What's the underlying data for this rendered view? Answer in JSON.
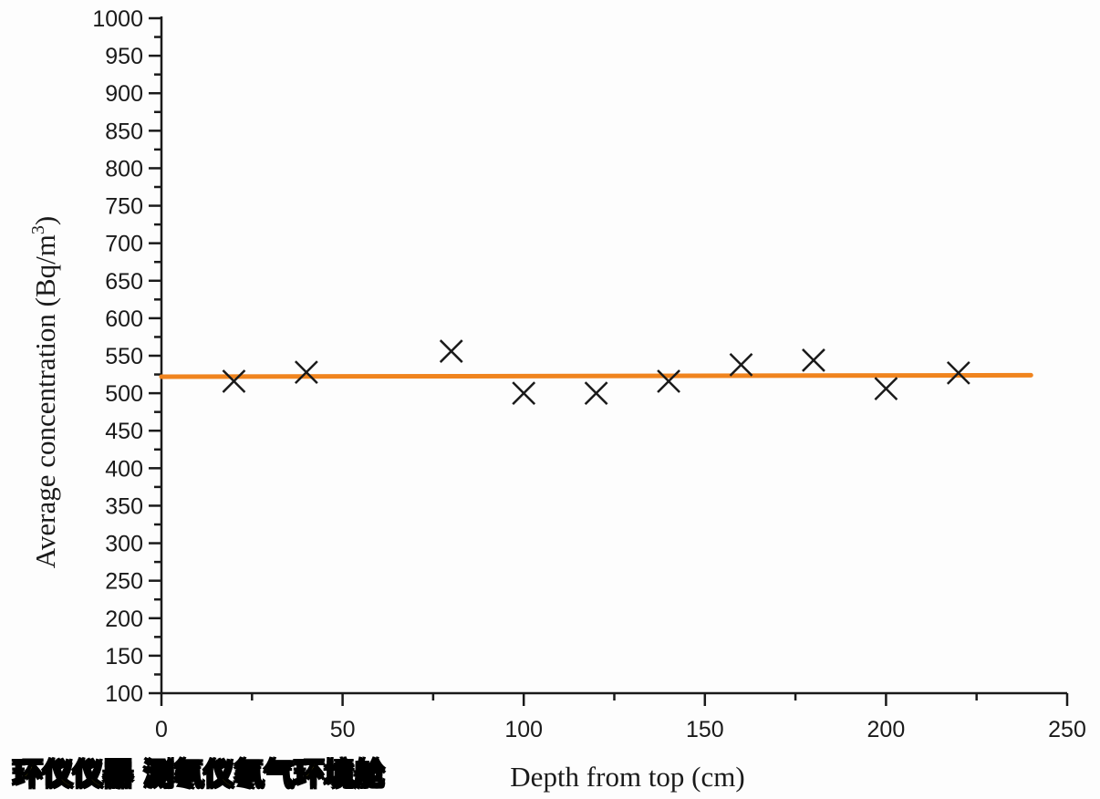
{
  "chart_data": {
    "type": "scatter",
    "xlabel": "Depth  from top (cm)",
    "ylabel": "Average concentration (Bq/m",
    "ylabel_superscript": "3",
    "ylabel_suffix": ")",
    "xlim": [
      0,
      250
    ],
    "ylim": [
      100,
      1000
    ],
    "x_ticks": [
      0,
      50,
      100,
      150,
      200,
      250
    ],
    "y_ticks": [
      100,
      150,
      200,
      250,
      300,
      350,
      400,
      450,
      500,
      550,
      600,
      650,
      700,
      750,
      800,
      850,
      900,
      950,
      1000
    ],
    "grid": false,
    "legend": "none",
    "series": [
      {
        "marker": "x",
        "color": "#1a1a1a",
        "x": [
          20,
          40,
          80,
          100,
          120,
          140,
          160,
          180,
          200,
          220
        ],
        "y": [
          516,
          528,
          556,
          500,
          500,
          516,
          538,
          544,
          506,
          527
        ]
      },
      {
        "type": "line",
        "color": "#f0841e",
        "x": [
          0,
          240
        ],
        "y": [
          522,
          524
        ]
      }
    ]
  },
  "watermark": "环仪仪器 测氡仪氡气环境舱"
}
